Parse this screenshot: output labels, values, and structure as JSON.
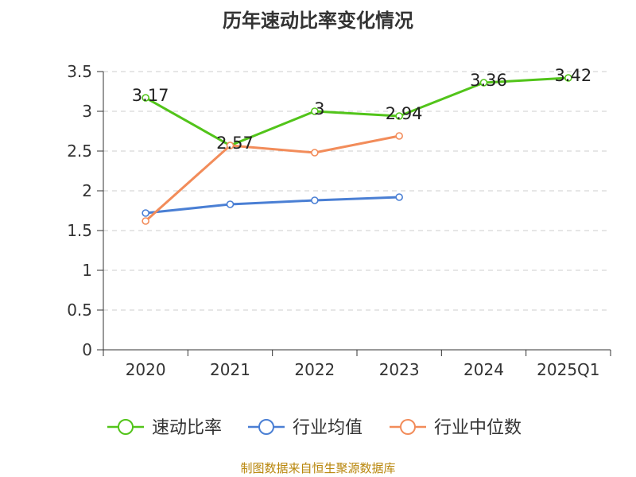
{
  "chart_data": {
    "type": "line",
    "title": "历年速动比率变化情况",
    "categories": [
      "2020",
      "2021",
      "2022",
      "2023",
      "2024",
      "2025Q1"
    ],
    "ylim": [
      0,
      3.5
    ],
    "yticks": [
      "0",
      "0.5",
      "1",
      "1.5",
      "2",
      "2.5",
      "3",
      "3.5"
    ],
    "grid": true,
    "legend_position": "bottom",
    "series": [
      {
        "name": "速动比率",
        "color": "#52c41a",
        "values": [
          3.17,
          2.57,
          3.0,
          2.94,
          3.36,
          3.42
        ],
        "labels": [
          "3.17",
          "2.57",
          "3",
          "2.94",
          "3.36",
          "3.42"
        ]
      },
      {
        "name": "行业均值",
        "color": "#4a7fd4",
        "values": [
          1.72,
          1.83,
          1.88,
          1.92,
          null,
          null
        ]
      },
      {
        "name": "行业中位数",
        "color": "#f28c5a",
        "values": [
          1.62,
          2.57,
          2.48,
          2.69,
          null,
          null
        ]
      }
    ]
  },
  "source": "制图数据来自恒生聚源数据库"
}
